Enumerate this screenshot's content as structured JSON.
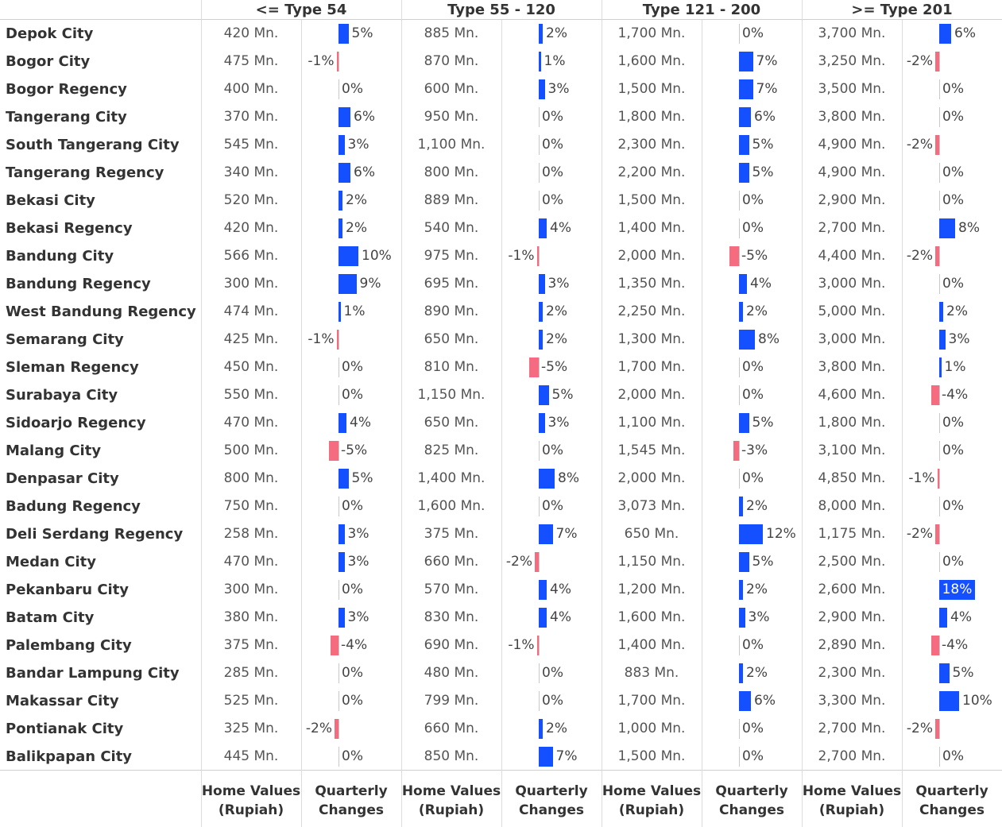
{
  "chart_data": {
    "type": "table",
    "groups": [
      "<= Type 54",
      "Type 55 - 120",
      "Type 121 - 200",
      ">= Type 201"
    ],
    "measures": [
      {
        "line1": "Home Values",
        "line2": "(Rupiah)"
      },
      {
        "line1": "Quarterly",
        "line2": "Changes"
      }
    ],
    "unit_suffix": " Mn.",
    "rows": [
      {
        "city": "Depok City",
        "values": [
          420,
          885,
          1700,
          3700
        ],
        "changes": [
          5,
          2,
          0,
          6
        ]
      },
      {
        "city": "Bogor City",
        "values": [
          475,
          870,
          1600,
          3250
        ],
        "changes": [
          -1,
          1,
          7,
          -2
        ]
      },
      {
        "city": "Bogor Regency",
        "values": [
          400,
          600,
          1500,
          3500
        ],
        "changes": [
          0,
          3,
          7,
          0
        ]
      },
      {
        "city": "Tangerang City",
        "values": [
          370,
          950,
          1800,
          3800
        ],
        "changes": [
          6,
          0,
          6,
          0
        ]
      },
      {
        "city": "South Tangerang City",
        "values": [
          545,
          1100,
          2300,
          4900
        ],
        "changes": [
          3,
          0,
          5,
          -2
        ]
      },
      {
        "city": "Tangerang Regency",
        "values": [
          340,
          800,
          2200,
          4900
        ],
        "changes": [
          6,
          0,
          5,
          0
        ]
      },
      {
        "city": "Bekasi City",
        "values": [
          520,
          889,
          1500,
          2900
        ],
        "changes": [
          2,
          0,
          0,
          0
        ]
      },
      {
        "city": "Bekasi Regency",
        "values": [
          420,
          540,
          1400,
          2700
        ],
        "changes": [
          2,
          4,
          0,
          8
        ]
      },
      {
        "city": "Bandung City",
        "values": [
          566,
          975,
          2000,
          4400
        ],
        "changes": [
          10,
          -1,
          -5,
          -2
        ]
      },
      {
        "city": "Bandung Regency",
        "values": [
          300,
          695,
          1350,
          3000
        ],
        "changes": [
          9,
          3,
          4,
          0
        ]
      },
      {
        "city": "West Bandung Regency",
        "values": [
          474,
          890,
          2250,
          5000
        ],
        "changes": [
          1,
          2,
          2,
          2
        ]
      },
      {
        "city": "Semarang City",
        "values": [
          425,
          650,
          1300,
          3000
        ],
        "changes": [
          -1,
          2,
          8,
          3
        ]
      },
      {
        "city": "Sleman Regency",
        "values": [
          450,
          810,
          1700,
          3800
        ],
        "changes": [
          0,
          -5,
          0,
          1
        ]
      },
      {
        "city": "Surabaya City",
        "values": [
          550,
          1150,
          2000,
          4600
        ],
        "changes": [
          0,
          5,
          0,
          -4
        ]
      },
      {
        "city": "Sidoarjo Regency",
        "values": [
          470,
          650,
          1100,
          1800
        ],
        "changes": [
          4,
          3,
          5,
          0
        ]
      },
      {
        "city": "Malang City",
        "values": [
          500,
          825,
          1545,
          3100
        ],
        "changes": [
          -5,
          0,
          -3,
          0
        ]
      },
      {
        "city": "Denpasar City",
        "values": [
          800,
          1400,
          2000,
          4850
        ],
        "changes": [
          5,
          8,
          0,
          -1
        ]
      },
      {
        "city": "Badung Regency",
        "values": [
          750,
          1600,
          3073,
          8000
        ],
        "changes": [
          0,
          0,
          2,
          0
        ]
      },
      {
        "city": "Deli Serdang Regency",
        "values": [
          258,
          375,
          650,
          1175
        ],
        "changes": [
          3,
          7,
          12,
          -2
        ]
      },
      {
        "city": "Medan City",
        "values": [
          470,
          660,
          1150,
          2500
        ],
        "changes": [
          3,
          -2,
          5,
          0
        ]
      },
      {
        "city": "Pekanbaru City",
        "values": [
          300,
          570,
          1200,
          2600
        ],
        "changes": [
          0,
          4,
          2,
          18
        ]
      },
      {
        "city": "Batam City",
        "values": [
          380,
          830,
          1600,
          2900
        ],
        "changes": [
          3,
          4,
          3,
          4
        ]
      },
      {
        "city": "Palembang City",
        "values": [
          375,
          690,
          1400,
          2890
        ],
        "changes": [
          -4,
          -1,
          0,
          -4
        ]
      },
      {
        "city": "Bandar Lampung City",
        "values": [
          285,
          480,
          883,
          2300
        ],
        "changes": [
          0,
          0,
          2,
          5
        ]
      },
      {
        "city": "Makassar City",
        "values": [
          525,
          799,
          1700,
          3300
        ],
        "changes": [
          0,
          0,
          6,
          10
        ]
      },
      {
        "city": "Pontianak City",
        "values": [
          325,
          660,
          1000,
          2700
        ],
        "changes": [
          -2,
          2,
          0,
          -2
        ]
      },
      {
        "city": "Balikpapan City",
        "values": [
          445,
          850,
          1500,
          2700
        ],
        "changes": [
          0,
          7,
          0,
          0
        ]
      }
    ],
    "colors": {
      "positive": "#1450ff",
      "negative": "#f56b7f"
    }
  }
}
